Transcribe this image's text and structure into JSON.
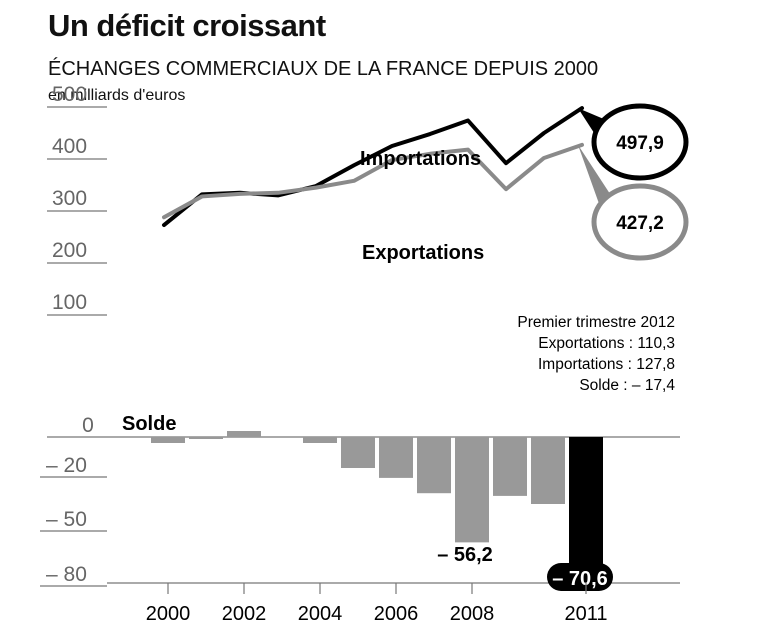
{
  "header": {
    "title": "Un déficit croissant",
    "subtitle": "ÉCHANGES COMMERCIAUX DE LA FRANCE DEPUIS 2000",
    "unit": "en milliards d'euros"
  },
  "chart_data": [
    {
      "type": "line",
      "x": [
        2000,
        2001,
        2002,
        2003,
        2004,
        2005,
        2006,
        2007,
        2008,
        2009,
        2010,
        2011
      ],
      "ylim": [
        0,
        500
      ],
      "yticks": [
        "500",
        "400",
        "300",
        "200",
        "100"
      ],
      "series": [
        {
          "name": "Importations",
          "color": "#000000",
          "values": [
            273,
            332,
            335,
            330,
            348,
            388,
            425,
            448,
            474,
            392,
            450,
            497.9
          ]
        },
        {
          "name": "Exportations",
          "color": "#8a8a8a",
          "values": [
            288,
            328,
            333,
            335,
            345,
            358,
            398,
            410,
            418,
            342,
            402,
            427.2
          ]
        }
      ],
      "end_labels": {
        "Importations": "497,9",
        "Exportations": "427,2"
      },
      "annotation": {
        "title": "Premier trimestre 2012",
        "lines": [
          "Exportations : 110,3",
          "Importations : 127,8",
          "Solde : – 17,4"
        ]
      }
    },
    {
      "type": "bar",
      "title": "Solde",
      "x": [
        2000,
        2001,
        2002,
        2003,
        2004,
        2005,
        2006,
        2007,
        2008,
        2009,
        2010,
        2011
      ],
      "values": [
        -3,
        -1,
        2,
        0,
        -3,
        -15.5,
        -20.5,
        -29,
        -56.2,
        -30.5,
        -35,
        -70.6
      ],
      "colors": [
        "#999999",
        "#999999",
        "#999999",
        "#999999",
        "#999999",
        "#999999",
        "#999999",
        "#999999",
        "#999999",
        "#999999",
        "#999999",
        "#000000"
      ],
      "yticks": [
        "0",
        "– 20",
        "– 50",
        "– 80"
      ],
      "value_labels": {
        "2008": "– 56,2",
        "2011": "– 70,6"
      },
      "xticks": [
        "2000",
        "2002",
        "2004",
        "2006",
        "2008",
        "2011"
      ]
    }
  ]
}
